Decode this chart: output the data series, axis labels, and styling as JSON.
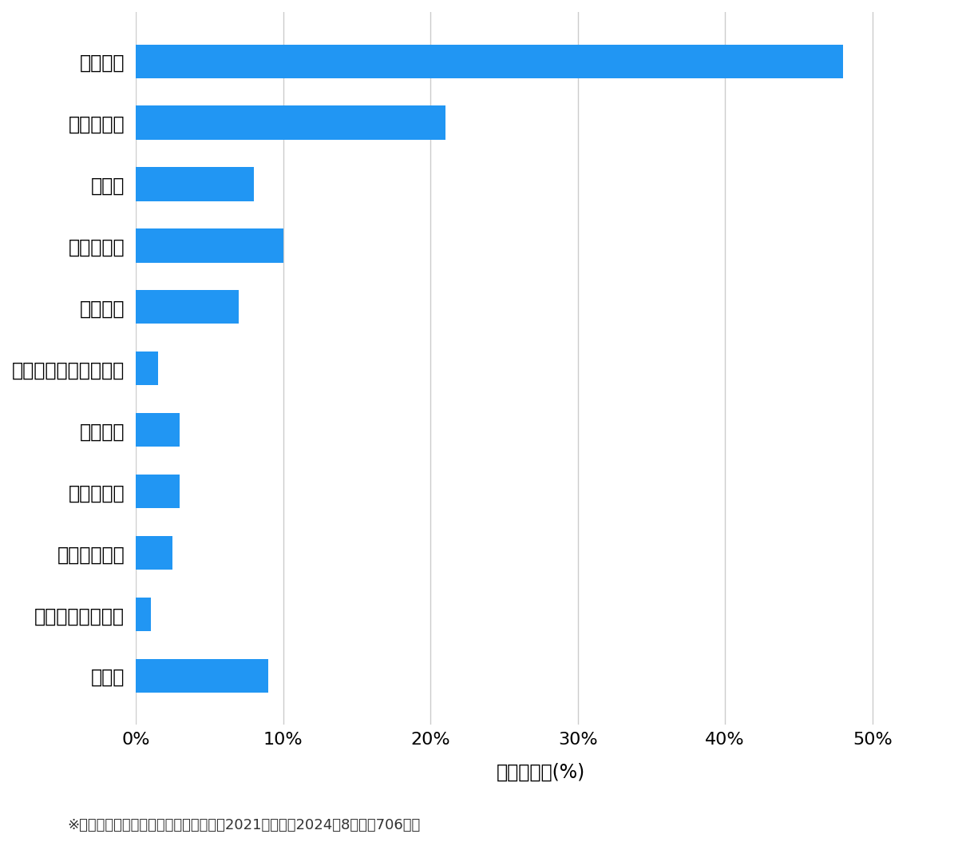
{
  "categories": [
    "玄関開錠",
    "玄関鍵交換",
    "車開錠",
    "その他開錠",
    "車鍵作成",
    "イモビ付国産車鍵作成",
    "金庫開錠",
    "玄関鍵作成",
    "その他鍵作成",
    "スーツケース開錠",
    "その他"
  ],
  "values": [
    48.0,
    21.0,
    8.0,
    10.0,
    7.0,
    1.5,
    3.0,
    3.0,
    2.5,
    1.0,
    9.0
  ],
  "bar_color": "#2196F3",
  "xlabel": "件数の割合(%)",
  "xlim": [
    0,
    55
  ],
  "xticks": [
    0,
    10,
    20,
    30,
    40,
    50
  ],
  "xtick_labels": [
    "0%",
    "10%",
    "20%",
    "30%",
    "40%",
    "50%"
  ],
  "footnote": "※弊社受付の案件を対象に集計（期間：2021年１月〜2024年8月、計706件）",
  "background_color": "#ffffff",
  "grid_color": "#cccccc",
  "label_fontsize": 17,
  "tick_fontsize": 16,
  "footnote_fontsize": 13
}
